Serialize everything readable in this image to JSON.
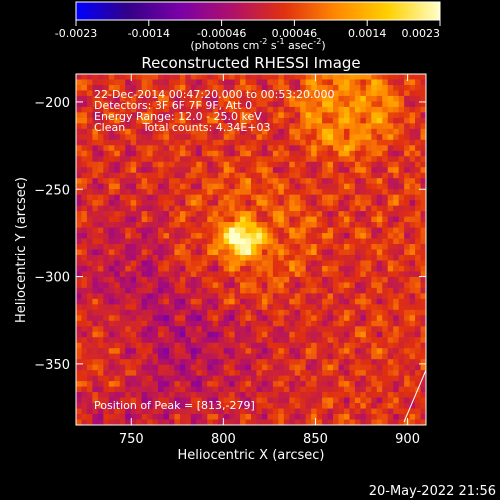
{
  "colorbar": {
    "ticks": [
      "-0.0023",
      "-0.0014",
      "-0.00046",
      "0.00046",
      "0.0014",
      "0.0023"
    ],
    "unit_label": {
      "open": "(photons cm",
      "exp1": "-2",
      "mid1": " s",
      "exp2": "-1",
      "mid2": " asec",
      "exp3": "-2",
      "close": ")"
    },
    "range": [
      -0.0023,
      0.0023
    ],
    "colormap_stops": [
      "#0000ff",
      "#330088",
      "#7a00a8",
      "#b0106a",
      "#e03010",
      "#ff8800",
      "#ffd000",
      "#ffffc8"
    ]
  },
  "plot": {
    "title": "Reconstructed RHESSI Image",
    "info_lines": [
      "22-Dec-2014 00:47:20.000 to 00:53:20.000",
      "Detectors: 3F 6F 7F 9F, Att 0",
      "Energy Range: 12.0 - 25.0 keV",
      "Clean     Total counts: 4.34E+03"
    ],
    "peak_label": "Position of Peak = [813,-279]"
  },
  "footer_timestamp": "20-May-2022 21:56",
  "chart_data": {
    "type": "heatmap",
    "title": "Reconstructed RHESSI Image",
    "xlabel": "Heliocentric X (arcsec)",
    "ylabel": "Heliocentric Y (arcsec)",
    "xlim": [
      720,
      910
    ],
    "ylim": [
      -385,
      -184
    ],
    "xticks": [
      750,
      800,
      850,
      900
    ],
    "yticks": [
      -200,
      -250,
      -300,
      -350
    ],
    "value_range": [
      -0.0023,
      0.0023
    ],
    "peak_position": [
      813,
      -279
    ],
    "sources": [
      {
        "x": 810,
        "y": -279,
        "value": 0.0023
      },
      {
        "x": 868,
        "y": -204,
        "value": 0.0009
      },
      {
        "x": 735,
        "y": -340,
        "value": 0.0005
      }
    ],
    "background_value": 0.0003,
    "grid": false
  }
}
